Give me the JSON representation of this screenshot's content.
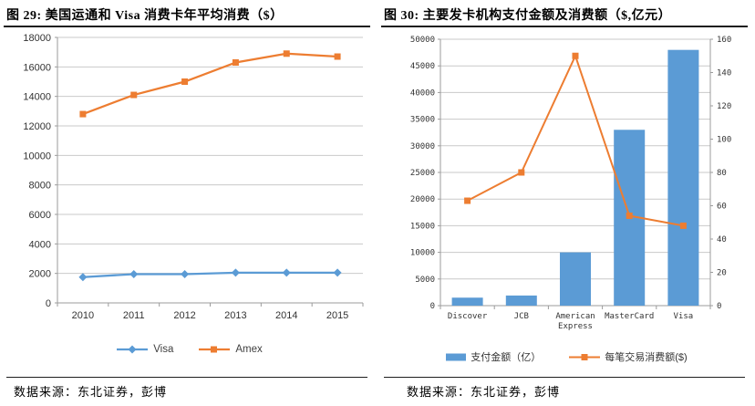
{
  "colors": {
    "blue": "#5B9BD5",
    "orange": "#ED7D31",
    "gridline": "#C9C9C9",
    "axis": "#9B9B9B",
    "tick_text": "#333333",
    "title_text": "#000000"
  },
  "chart_data": [
    {
      "type": "line",
      "title": "图 29: 美国运通和 Visa 消费卡年平均消费（$）",
      "source": "数据来源：东北证券，彭博",
      "categories": [
        "2010",
        "2011",
        "2012",
        "2013",
        "2014",
        "2015"
      ],
      "series": [
        {
          "name": "Visa",
          "values": [
            1750,
            1950,
            1950,
            2050,
            2050,
            2050
          ],
          "color": "#5B9BD5",
          "marker": "diamond"
        },
        {
          "name": "Amex",
          "values": [
            12800,
            14100,
            15000,
            16300,
            16900,
            16700
          ],
          "color": "#ED7D31",
          "marker": "square"
        }
      ],
      "ylim": [
        0,
        18000
      ],
      "ytick": 2000,
      "grid": true,
      "legend_position": "bottom"
    },
    {
      "type": "bar+line",
      "title": "图 30: 主要发卡机构支付金额及消费额（$,亿元）",
      "source": "数据来源：东北证券，彭博",
      "categories": [
        "Discover",
        "JCB",
        "American Express",
        "MasterCard",
        "Visa"
      ],
      "bar_series": {
        "name": "支付金额（亿）",
        "values": [
          1500,
          1900,
          10000,
          33000,
          48000
        ],
        "color": "#5B9BD5",
        "axis": "left"
      },
      "line_series": {
        "name": "每笔交易消费额($)",
        "values": [
          63,
          80,
          150,
          54,
          48
        ],
        "color": "#ED7D31",
        "axis": "right",
        "marker": "square"
      },
      "ylim_left": [
        0,
        50000
      ],
      "ytick_left": 5000,
      "ylim_right": [
        0,
        160
      ],
      "ytick_right": 20,
      "grid": true,
      "legend_position": "bottom"
    }
  ]
}
